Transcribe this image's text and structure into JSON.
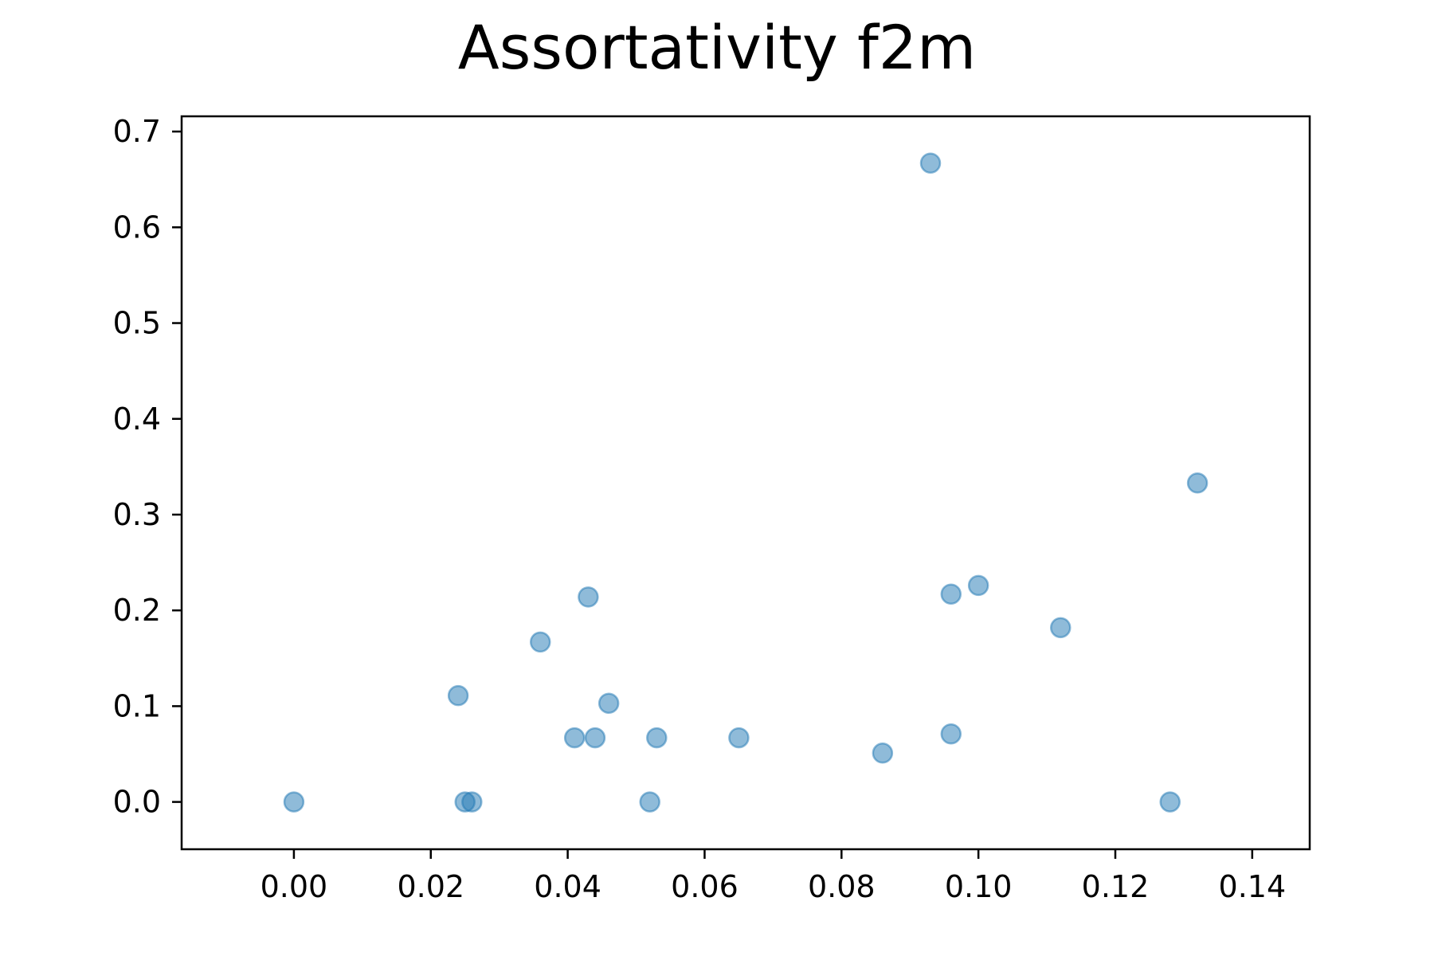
{
  "chart_data": {
    "type": "scatter",
    "title": "Assortativity f2m",
    "xlabel": "",
    "ylabel": "",
    "xlim": [
      -0.0164,
      0.1484
    ],
    "ylim": [
      -0.0494,
      0.7159
    ],
    "xticks": [
      0.0,
      0.02,
      0.04,
      0.06,
      0.08,
      0.1,
      0.12,
      0.14
    ],
    "xtick_labels": [
      "0.00",
      "0.02",
      "0.04",
      "0.06",
      "0.08",
      "0.10",
      "0.12",
      "0.14"
    ],
    "yticks": [
      0.0,
      0.1,
      0.2,
      0.3,
      0.4,
      0.5,
      0.6,
      0.7
    ],
    "ytick_labels": [
      "0.0",
      "0.1",
      "0.2",
      "0.3",
      "0.4",
      "0.5",
      "0.6",
      "0.7"
    ],
    "grid": false,
    "legend": "none",
    "marker_color": "#1f77b4",
    "marker_alpha": 0.5,
    "series": [
      {
        "x": [
          0.0,
          0.024,
          0.025,
          0.026,
          0.036,
          0.041,
          0.043,
          0.044,
          0.046,
          0.052,
          0.053,
          0.065,
          0.086,
          0.093,
          0.096,
          0.096,
          0.1,
          0.112,
          0.128,
          0.132
        ],
        "y": [
          0.0,
          0.111,
          0.0,
          0.0,
          0.167,
          0.067,
          0.214,
          0.067,
          0.103,
          0.0,
          0.067,
          0.067,
          0.051,
          0.667,
          0.071,
          0.217,
          0.226,
          0.182,
          0.0,
          0.333
        ]
      }
    ]
  }
}
